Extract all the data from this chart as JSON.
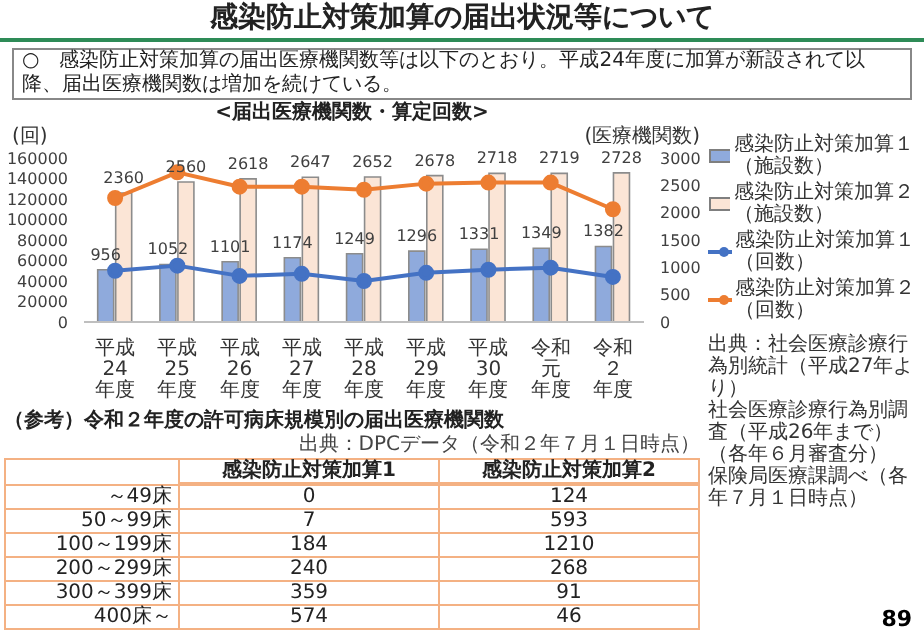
{
  "chart_data": [
    {
      "type": "bar",
      "title": "感染防止対策加算の届出状況等について",
      "subtitle": "<届出医療機関数・算定回数>",
      "ylabel": "(回)",
      "y2label": "(医療機関数)",
      "categories": [
        "平成24年度",
        "平成25年度",
        "平成26年度",
        "平成27年度",
        "平成28年度",
        "平成29年度",
        "平成30年度",
        "令和元年度",
        "令和２年度"
      ],
      "series": [
        {
          "name": "感染防止対策加算１（施設数）",
          "type": "bar",
          "axis": "y2",
          "color": "#8faadc",
          "values": [
            956,
            1052,
            1101,
            1174,
            1249,
            1296,
            1331,
            1349,
            1382
          ],
          "value_labels": [
            "956",
            "1052",
            "1101",
            "1174",
            "1249",
            "1296",
            "1331",
            "1349",
            "1382"
          ]
        },
        {
          "name": "感染防止対策加算２（施設数）",
          "type": "bar",
          "axis": "y2",
          "color": "#fbe5d6",
          "values": [
            2360,
            2560,
            2618,
            2647,
            2652,
            2678,
            2718,
            2719,
            2728
          ],
          "value_labels": [
            "2360",
            "2560",
            "2618",
            "2647",
            "2652",
            "2678",
            "2718",
            "2719",
            "2728"
          ]
        },
        {
          "name": "感染防止対策加算１（回数）",
          "type": "line",
          "axis": "y",
          "color": "#4472c4",
          "values": [
            50000,
            55000,
            45000,
            47000,
            40000,
            48000,
            51000,
            53000,
            44000
          ]
        },
        {
          "name": "感染防止対策加算２（回数）",
          "type": "line",
          "axis": "y",
          "color": "#ed7d31",
          "values": [
            121000,
            146000,
            132000,
            132000,
            129000,
            135000,
            136000,
            136000,
            110000
          ]
        }
      ],
      "ylim": [
        0,
        160000
      ],
      "yticks": [
        0,
        20000,
        40000,
        60000,
        80000,
        100000,
        120000,
        140000,
        160000
      ],
      "y2lim": [
        0,
        3000
      ],
      "y2ticks": [
        0,
        500,
        1000,
        1500,
        2000,
        2500,
        3000
      ],
      "marker": "circle",
      "legend": "right",
      "annotations": [
        "○　感染防止対策加算の届出医療機関数等は以下のとおり。平成24年度に加算が新設されて以降、届出医療機関数は増加を続けている。",
        "出典：社会医療診療行為別統計（平成27年より）",
        "社会医療診療行為別調査（平成26年まで）",
        "（各年６月審査分）",
        "保険局医療課調べ（各年７月１日時点）",
        "89"
      ]
    },
    {
      "type": "other",
      "title": "（参考）令和２年度の許可病床規模別の届出医療機関数",
      "categories": [
        "～49床",
        "50～99床",
        "100～199床",
        "200～299床",
        "300～399床",
        "400床～"
      ],
      "series": [
        {
          "name": "感染防止対策加算1",
          "values": [
            0,
            7,
            184,
            240,
            359,
            574
          ]
        },
        {
          "name": "感染防止対策加算2",
          "values": [
            124,
            593,
            1210,
            268,
            91,
            46
          ]
        }
      ],
      "data_labels": true,
      "annotations": [
        "出典：DPCデータ（令和２年７月１日時点）"
      ]
    }
  ]
}
